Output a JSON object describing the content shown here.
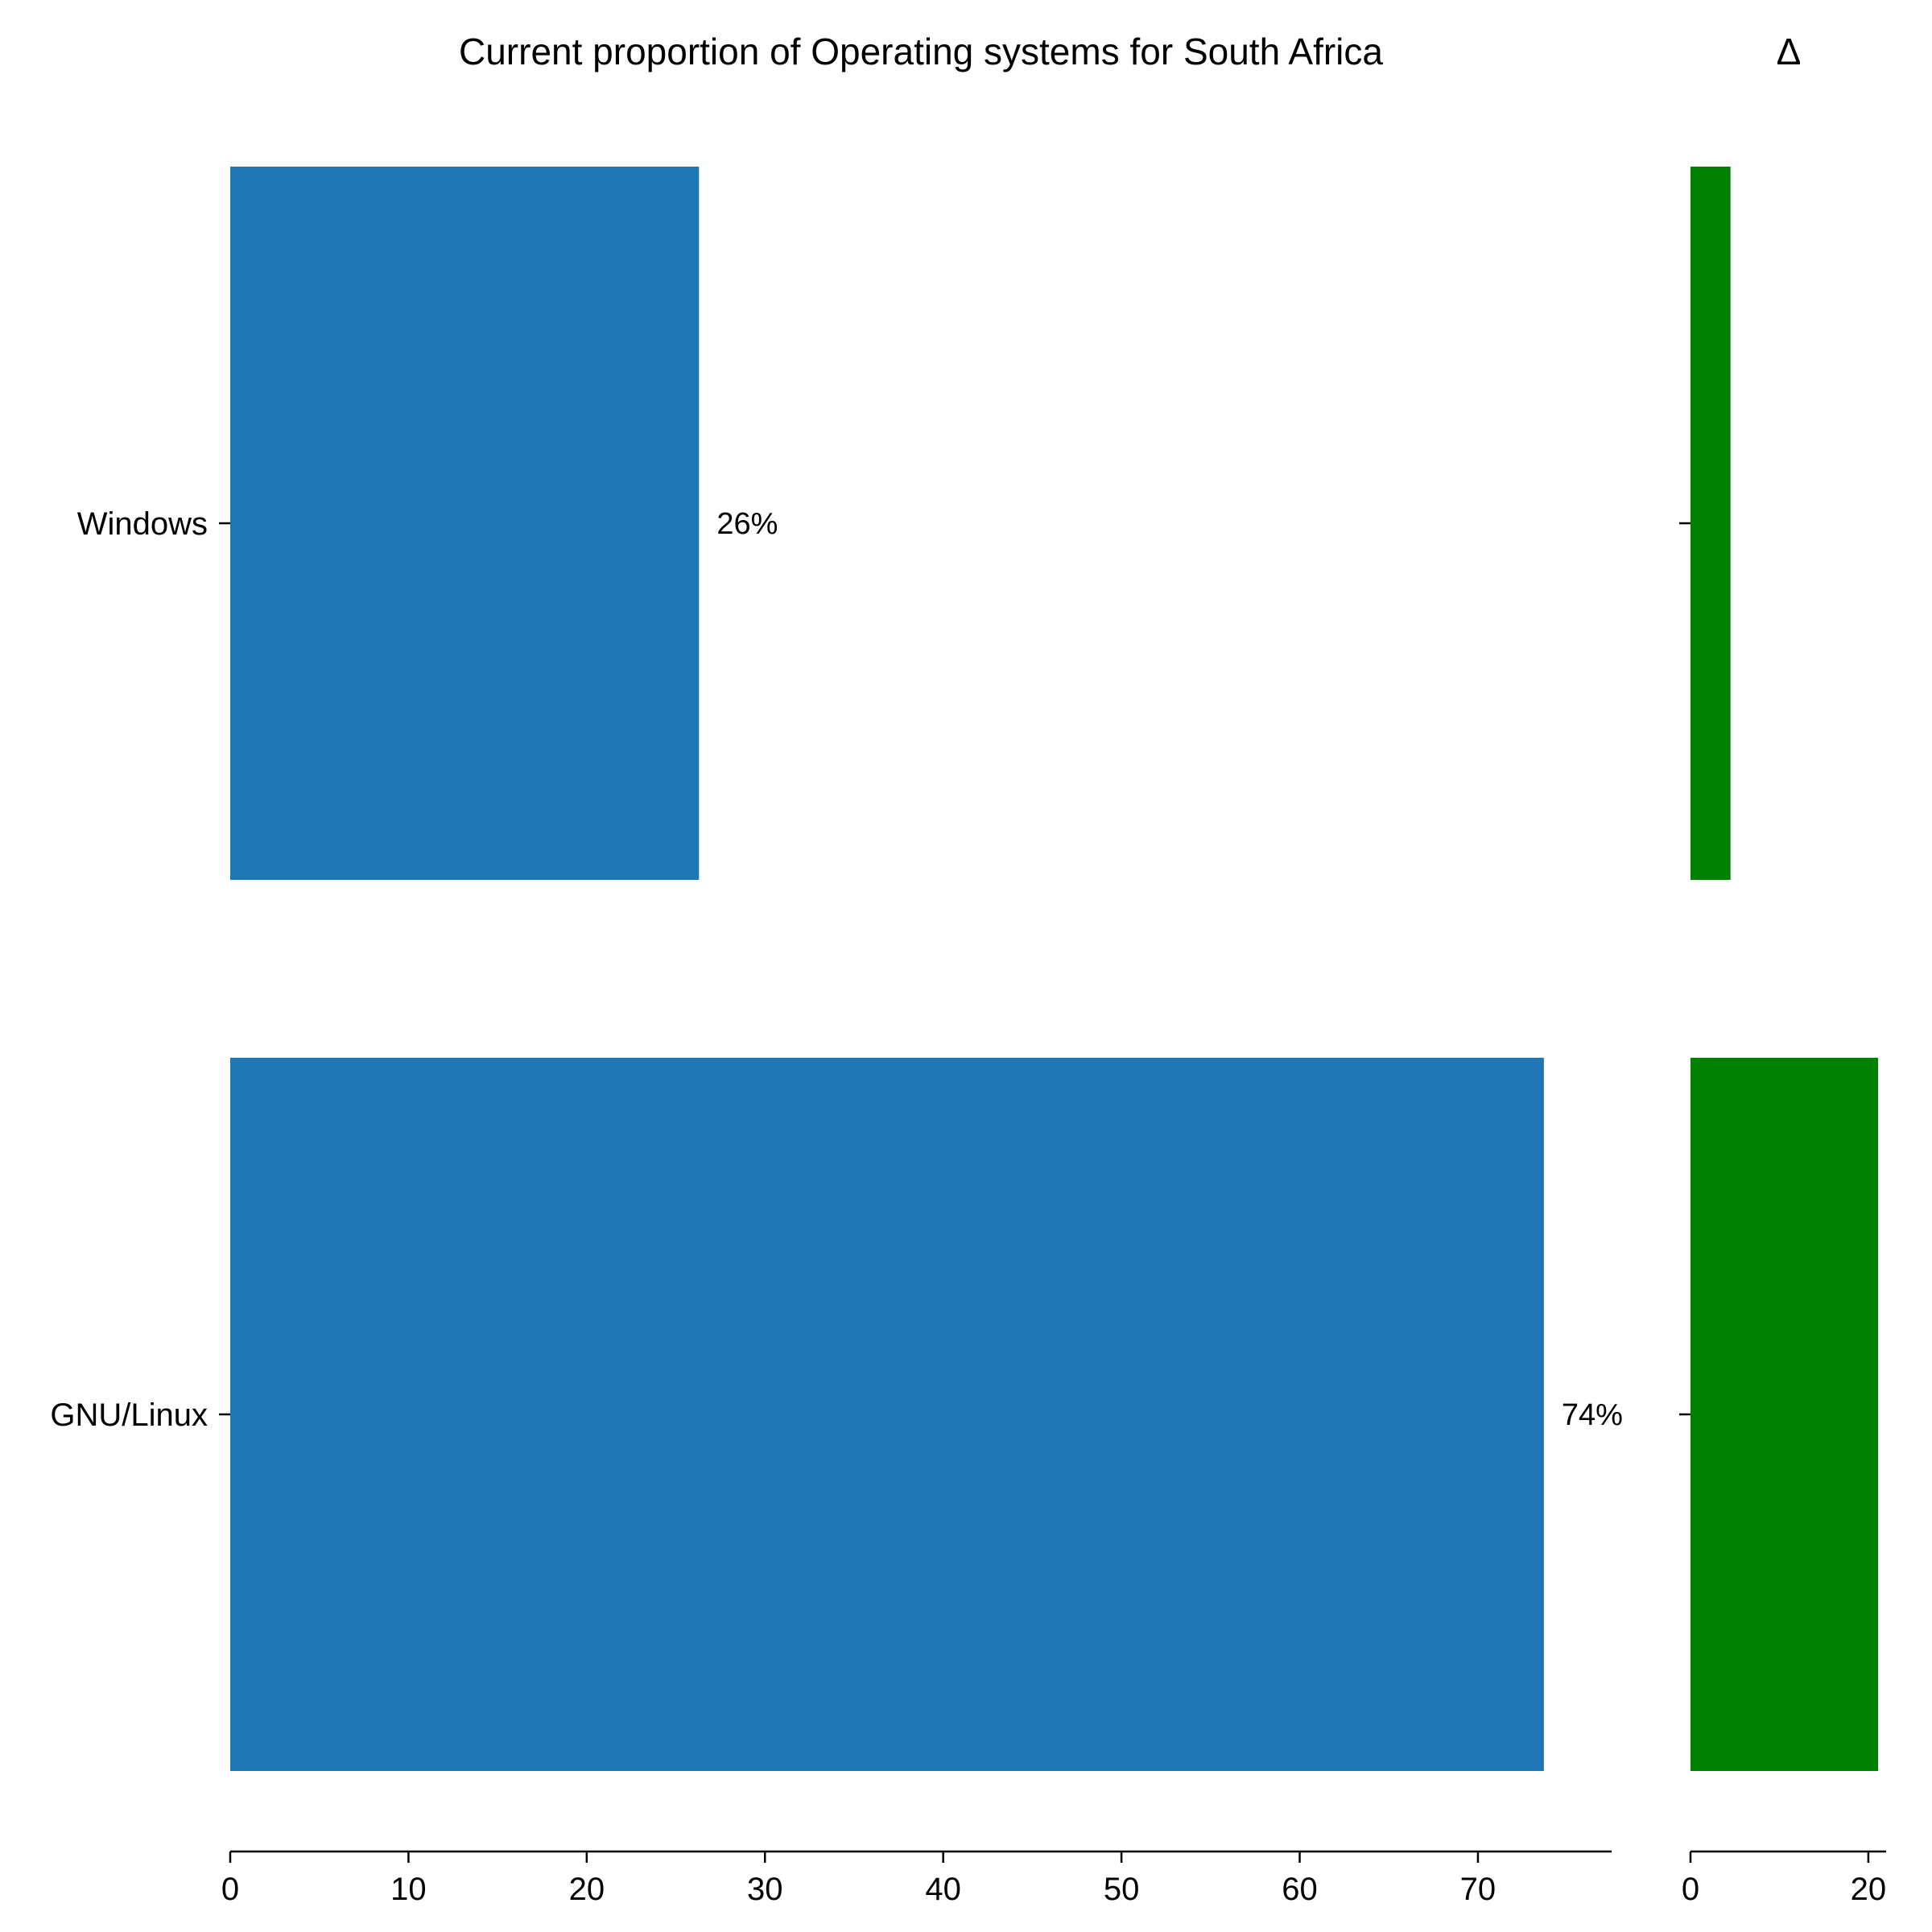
{
  "chart_data": [
    {
      "type": "bar",
      "orientation": "horizontal",
      "title": "Current proportion of Operating systems for South Africa",
      "categories": [
        "Windows",
        "GNU/Linux"
      ],
      "values": [
        26.3,
        73.7
      ],
      "data_labels": [
        "26%",
        "74%"
      ],
      "xlim": [
        0,
        77.5
      ],
      "xticks": [
        0,
        10,
        20,
        30,
        40,
        50,
        60,
        70
      ],
      "bar_color": "#1f77b4",
      "grid": false
    },
    {
      "type": "bar",
      "orientation": "horizontal",
      "title": "Δ",
      "categories": [
        "Windows",
        "GNU/Linux"
      ],
      "values": [
        4.5,
        21.1
      ],
      "xlim": [
        0,
        22
      ],
      "xticks": [
        0,
        20
      ],
      "bar_color": "#008000",
      "grid": false
    }
  ]
}
